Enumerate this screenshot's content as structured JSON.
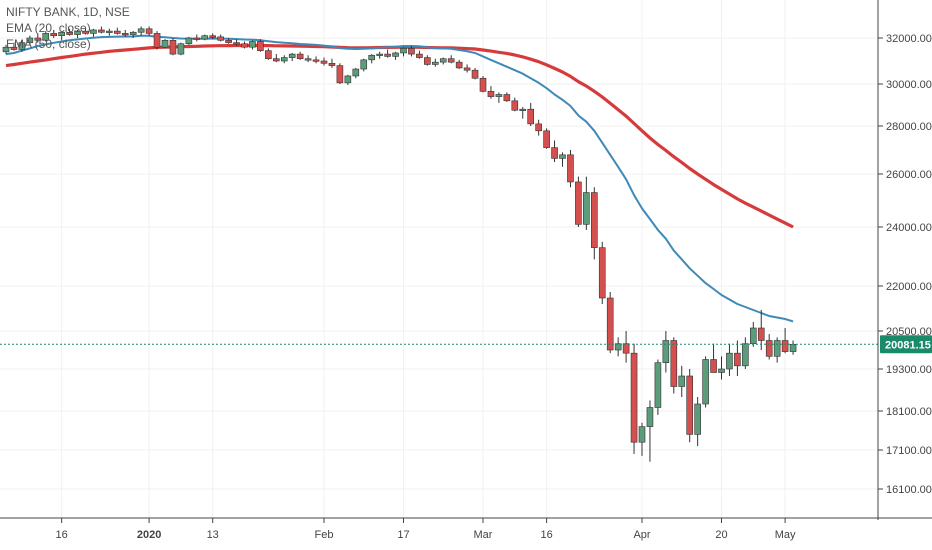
{
  "header": {
    "symbol": "NIFTY BANK, 1D, NSE",
    "indicators": [
      "EMA (20, close)",
      "EMA (50, close)"
    ]
  },
  "colors": {
    "bull": "#5b9c7b",
    "bear": "#d64f4f",
    "ema20": "#3d8ab8",
    "ema50": "#d63b3b",
    "last_price": "#1a8a6a",
    "grid": "#f0f0f0"
  },
  "chart_data": {
    "type": "candlestick",
    "y_ticks": [
      32000,
      30000,
      28000,
      26000,
      24000,
      22000,
      20500,
      19300,
      18100,
      17100,
      16100
    ],
    "y_tick_labels": [
      "32000.00",
      "30000.00",
      "28000.00",
      "26000.00",
      "24000.00",
      "22000.00",
      "20500.00",
      "19300.00",
      "18100.00",
      "17100.00",
      "16100.00"
    ],
    "x_labels": [
      "16",
      "2020",
      "13",
      "Feb",
      "17",
      "Mar",
      "16",
      "Apr",
      "20",
      "May"
    ],
    "x_label_index": [
      7,
      18,
      26,
      40,
      50,
      60,
      68,
      80,
      90,
      98
    ],
    "last_price": 20081.15,
    "last_price_label": "20081.15",
    "candles": [
      [
        31400,
        31700,
        31300,
        31600
      ],
      [
        31600,
        31800,
        31450,
        31500
      ],
      [
        31500,
        31900,
        31400,
        31800
      ],
      [
        31800,
        32100,
        31700,
        32000
      ],
      [
        32000,
        32200,
        31800,
        31900
      ],
      [
        31900,
        32300,
        31850,
        32200
      ],
      [
        32200,
        32350,
        32000,
        32100
      ],
      [
        32100,
        32300,
        31900,
        32250
      ],
      [
        32250,
        32400,
        32100,
        32150
      ],
      [
        32150,
        32350,
        32000,
        32300
      ],
      [
        32300,
        32450,
        32150,
        32200
      ],
      [
        32200,
        32400,
        32050,
        32350
      ],
      [
        32350,
        32500,
        32200,
        32250
      ],
      [
        32250,
        32400,
        32100,
        32300
      ],
      [
        32300,
        32450,
        32150,
        32200
      ],
      [
        32200,
        32350,
        32050,
        32150
      ],
      [
        32150,
        32300,
        32000,
        32250
      ],
      [
        32250,
        32500,
        32100,
        32400
      ],
      [
        32400,
        32500,
        32100,
        32200
      ],
      [
        32200,
        32300,
        31500,
        31600
      ],
      [
        31600,
        31950,
        31550,
        31900
      ],
      [
        31900,
        32000,
        31250,
        31300
      ],
      [
        31300,
        31800,
        31250,
        31750
      ],
      [
        31750,
        32050,
        31700,
        32000
      ],
      [
        32000,
        32150,
        31850,
        31950
      ],
      [
        31950,
        32150,
        31900,
        32100
      ],
      [
        32100,
        32200,
        31950,
        32050
      ],
      [
        32050,
        32150,
        31850,
        31900
      ],
      [
        31900,
        32000,
        31750,
        31800
      ],
      [
        31800,
        31950,
        31650,
        31750
      ],
      [
        31750,
        31850,
        31550,
        31600
      ],
      [
        31600,
        31900,
        31500,
        31850
      ],
      [
        31850,
        31950,
        31400,
        31450
      ],
      [
        31450,
        31550,
        31050,
        31100
      ],
      [
        31100,
        31300,
        30950,
        31000
      ],
      [
        31000,
        31250,
        30900,
        31150
      ],
      [
        31150,
        31350,
        31000,
        31300
      ],
      [
        31300,
        31400,
        31050,
        31100
      ],
      [
        31100,
        31250,
        30950,
        31050
      ],
      [
        31050,
        31200,
        30900,
        31000
      ],
      [
        31000,
        31150,
        30800,
        30900
      ],
      [
        30900,
        31100,
        30700,
        30800
      ],
      [
        30800,
        30900,
        30000,
        30050
      ],
      [
        30050,
        30400,
        29950,
        30350
      ],
      [
        30350,
        30700,
        30250,
        30650
      ],
      [
        30650,
        31100,
        30550,
        31050
      ],
      [
        31050,
        31300,
        30900,
        31250
      ],
      [
        31250,
        31400,
        31100,
        31300
      ],
      [
        31300,
        31500,
        31150,
        31200
      ],
      [
        31200,
        31400,
        31050,
        31350
      ],
      [
        31350,
        31600,
        31200,
        31550
      ],
      [
        31550,
        31650,
        31200,
        31300
      ],
      [
        31300,
        31450,
        31100,
        31150
      ],
      [
        31150,
        31250,
        30800,
        30850
      ],
      [
        30850,
        31100,
        30750,
        30950
      ],
      [
        30950,
        31150,
        30850,
        31100
      ],
      [
        31100,
        31250,
        30900,
        30950
      ],
      [
        30950,
        31050,
        30650,
        30700
      ],
      [
        30700,
        30850,
        30500,
        30600
      ],
      [
        30600,
        30700,
        30200,
        30250
      ],
      [
        30250,
        30350,
        29600,
        29650
      ],
      [
        29650,
        29900,
        29300,
        29400
      ],
      [
        29400,
        29600,
        29100,
        29500
      ],
      [
        29500,
        29600,
        29150,
        29200
      ],
      [
        29200,
        29350,
        28700,
        28750
      ],
      [
        28750,
        28900,
        28350,
        28800
      ],
      [
        28800,
        29100,
        28000,
        28100
      ],
      [
        28100,
        28300,
        27600,
        27800
      ],
      [
        27800,
        27900,
        27050,
        27100
      ],
      [
        27100,
        27400,
        26500,
        26650
      ],
      [
        26650,
        26900,
        26300,
        26800
      ],
      [
        26800,
        27000,
        25500,
        25700
      ],
      [
        25700,
        25900,
        24000,
        24100
      ],
      [
        24100,
        25900,
        23900,
        25300
      ],
      [
        25300,
        25500,
        22900,
        23300
      ],
      [
        23300,
        23500,
        21400,
        21600
      ],
      [
        21600,
        21800,
        19800,
        19900
      ],
      [
        19900,
        20300,
        19700,
        20100
      ],
      [
        20100,
        20500,
        19500,
        19800
      ],
      [
        19800,
        20100,
        17000,
        17300
      ],
      [
        17300,
        17800,
        16950,
        17700
      ],
      [
        17700,
        18400,
        16800,
        18200
      ],
      [
        18200,
        19600,
        18000,
        19500
      ],
      [
        19500,
        20500,
        19200,
        20200
      ],
      [
        20200,
        20300,
        18600,
        18800
      ],
      [
        18800,
        19400,
        18500,
        19100
      ],
      [
        19100,
        19300,
        17300,
        17500
      ],
      [
        17500,
        18500,
        17200,
        18300
      ],
      [
        18300,
        19700,
        18200,
        19600
      ],
      [
        19600,
        20100,
        19200,
        19200
      ],
      [
        19200,
        19700,
        19000,
        19300
      ],
      [
        19300,
        20100,
        19100,
        19800
      ],
      [
        19800,
        20200,
        19100,
        19400
      ],
      [
        19400,
        20300,
        19300,
        20100
      ],
      [
        20100,
        20800,
        20000,
        20600
      ],
      [
        20600,
        21200,
        19900,
        20200
      ],
      [
        20200,
        20400,
        19600,
        19700
      ],
      [
        19700,
        20300,
        19500,
        20200
      ],
      [
        20200,
        20600,
        19800,
        19850
      ],
      [
        19850,
        20200,
        19750,
        20081
      ]
    ],
    "ema20": [
      31300,
      31350,
      31450,
      31550,
      31650,
      31720,
      31790,
      31850,
      31900,
      31940,
      31980,
      32010,
      32040,
      32050,
      32060,
      32065,
      32070,
      32100,
      32100,
      32050,
      32030,
      32000,
      31980,
      31975,
      31970,
      31975,
      31980,
      31975,
      31965,
      31950,
      31935,
      31925,
      31900,
      31860,
      31820,
      31790,
      31770,
      31740,
      31720,
      31700,
      31670,
      31630,
      31560,
      31530,
      31520,
      31530,
      31550,
      31580,
      31600,
      31620,
      31650,
      31650,
      31640,
      31590,
      31560,
      31550,
      31530,
      31480,
      31420,
      31350,
      31200,
      31050,
      30900,
      30750,
      30600,
      30450,
      30250,
      30050,
      29800,
      29500,
      29250,
      28950,
      28500,
      28200,
      27800,
      27300,
      26800,
      26300,
      25800,
      25200,
      24700,
      24300,
      23900,
      23600,
      23200,
      22900,
      22600,
      22350,
      22100,
      21900,
      21700,
      21550,
      21400,
      21300,
      21200,
      21100,
      21000,
      20950,
      20900,
      20820
    ],
    "ema50": [
      30800,
      30850,
      30900,
      30950,
      31000,
      31050,
      31100,
      31150,
      31200,
      31250,
      31300,
      31340,
      31380,
      31420,
      31450,
      31480,
      31510,
      31540,
      31570,
      31590,
      31600,
      31610,
      31620,
      31630,
      31640,
      31650,
      31660,
      31665,
      31670,
      31672,
      31675,
      31676,
      31675,
      31670,
      31660,
      31655,
      31650,
      31645,
      31640,
      31630,
      31620,
      31610,
      31590,
      31580,
      31575,
      31575,
      31580,
      31585,
      31590,
      31595,
      31600,
      31600,
      31595,
      31585,
      31580,
      31575,
      31570,
      31555,
      31540,
      31520,
      31480,
      31430,
      31380,
      31330,
      31260,
      31180,
      31080,
      30970,
      30830,
      30680,
      30520,
      30330,
      30100,
      29900,
      29650,
      29380,
      29080,
      28780,
      28470,
      28120,
      27800,
      27500,
      27230,
      26980,
      26720,
      26480,
      26230,
      26000,
      25800,
      25600,
      25420,
      25240,
      25060,
      24900,
      24750,
      24600,
      24450,
      24300,
      24150,
      24000
    ]
  }
}
